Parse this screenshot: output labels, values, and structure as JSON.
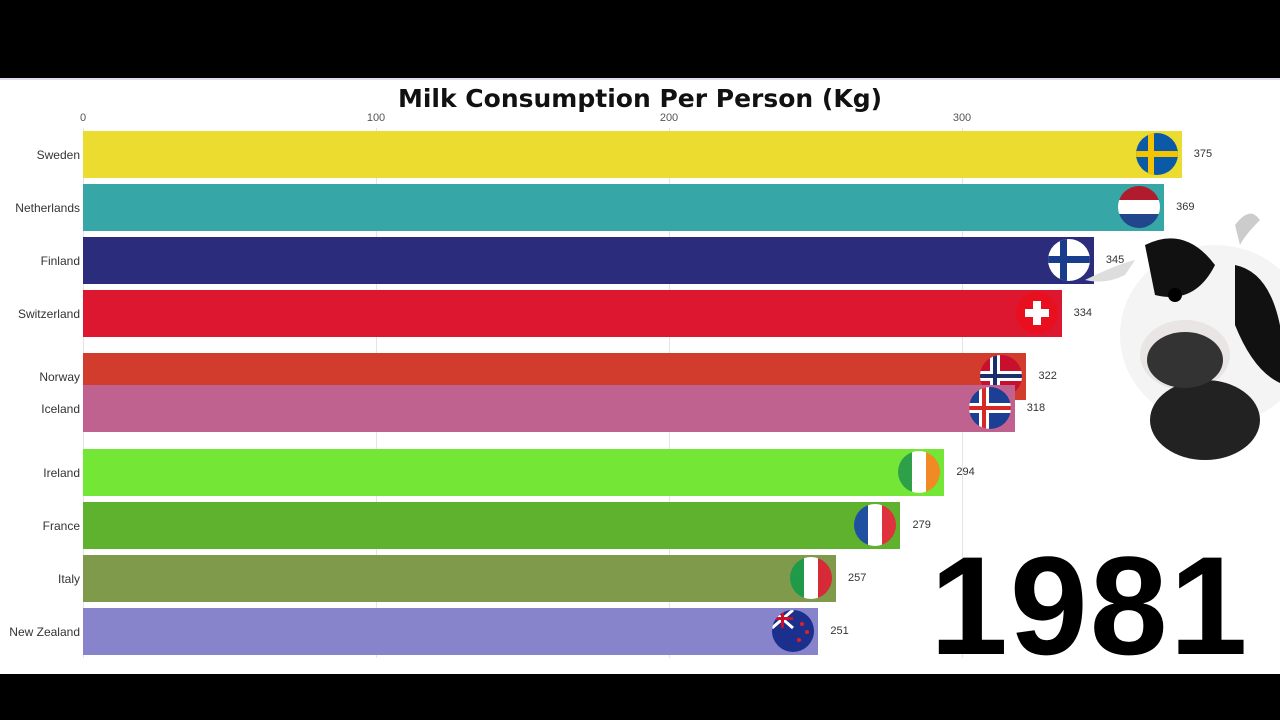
{
  "chart_data": {
    "type": "bar",
    "orientation": "horizontal",
    "title": "Milk Consumption Per Person (Kg)",
    "xlim": [
      0,
      375
    ],
    "ticks": [
      0,
      100,
      200,
      300
    ],
    "tick_labels": [
      "0",
      "100",
      "200",
      "300"
    ],
    "grid": true,
    "year": "1981",
    "categories": [
      "Sweden",
      "Netherlands",
      "Finland",
      "Switzerland",
      "Norway",
      "Iceland",
      "Ireland",
      "France",
      "Italy",
      "New Zealand"
    ],
    "values": [
      375,
      369,
      345,
      334,
      322,
      318,
      294,
      279,
      257,
      251
    ],
    "colors": [
      "#ecdc30",
      "#36a6a6",
      "#2c2c7c",
      "#de1730",
      "#d23c2d",
      "#c0628f",
      "#74e636",
      "#5eb22e",
      "#7f9a4a",
      "#8784cc"
    ],
    "flags": [
      "sweden-flag",
      "netherlands-flag",
      "finland-flag",
      "switzerland-flag",
      "norway-flag",
      "iceland-flag",
      "ireland-flag",
      "france-flag",
      "italy-flag",
      "new-zealand-flag"
    ]
  }
}
